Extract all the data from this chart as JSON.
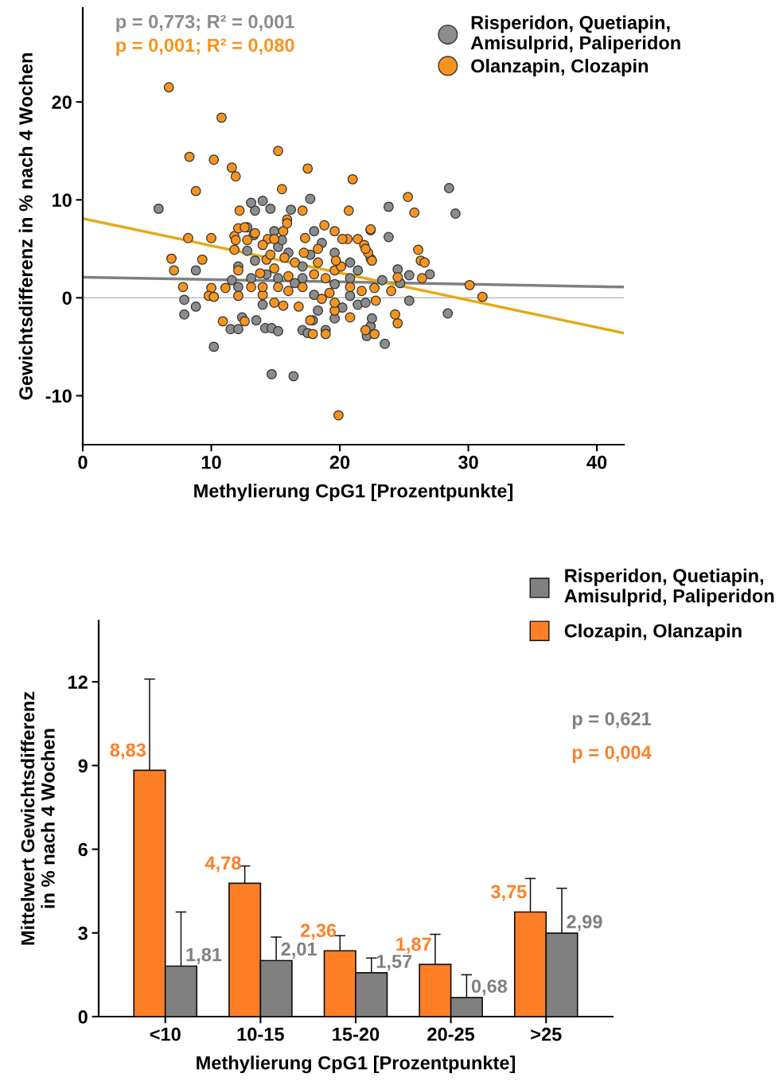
{
  "chart_data": [
    {
      "type": "scatter",
      "xlabel": "Methylierung CpG1 [Prozentpunkte]",
      "ylabel": "Gewichtsdifferenz in % nach 4 Wochen",
      "xlim": [
        0,
        42.1
      ],
      "ylim": [
        -15.0,
        29.6
      ],
      "xticks": [
        0,
        10,
        20,
        30,
        40
      ],
      "yticks": [
        -10,
        0,
        10,
        20
      ],
      "grid": false,
      "legend": "top right",
      "marker": "circle",
      "annotations": [
        "p = 0,773; R² = 0,001",
        "p = 0,001; R² = 0,080"
      ],
      "ref_lines": [
        {
          "axis": "y",
          "value": 0,
          "color": "#b0b0b0"
        }
      ],
      "series": [
        {
          "name": "Risperidon, Quetiapin, Amisulprid, Paliperidon",
          "color": "#8c8c8c",
          "x": [
            5.9,
            28.5,
            29.0,
            8.8,
            7.9,
            7.9,
            8.8,
            10.2,
            11.5,
            12.1,
            12.4,
            13.4,
            14.0,
            13.1,
            14.6,
            16.2,
            17.7,
            14.9,
            12.8,
            13.3,
            12.1,
            11.6,
            12.1,
            13.1,
            14.0,
            14.2,
            14.7,
            13.5,
            15.2,
            14.7,
            16.4,
            17.1,
            17.5,
            17.9,
            18.3,
            18.9,
            19.6,
            20.2,
            20.8,
            21.4,
            22.0,
            22.4,
            22.5,
            22.1,
            23.5,
            22.4,
            23.8,
            23.8,
            24.5,
            24.7,
            25.4,
            25.4,
            27.0,
            28.4,
            19.6,
            16.5,
            17.1,
            18.0,
            18.6,
            17.7,
            19.6,
            15.2,
            14.3,
            13.4,
            12.8,
            16.0,
            15.5,
            20.8,
            21.4,
            23.3,
            20.8,
            15.2,
            17.1,
            18.0
          ],
          "values": [
            9.1,
            11.2,
            8.6,
            2.8,
            -0.2,
            -1.7,
            -0.9,
            -5.0,
            -3.2,
            -3.2,
            -2.0,
            8.9,
            9.9,
            9.7,
            9.1,
            9.0,
            10.1,
            6.8,
            7.2,
            6.4,
            3.2,
            1.8,
            1.1,
            2.0,
            -0.7,
            -3.1,
            -3.1,
            -2.3,
            -3.4,
            -7.8,
            -8.0,
            -3.3,
            -3.6,
            -2.3,
            -1.3,
            -3.3,
            -2.1,
            -1.0,
            0.2,
            -0.7,
            -0.5,
            -2.9,
            -2.1,
            -3.9,
            -4.7,
            6.9,
            9.3,
            6.2,
            2.9,
            1.5,
            2.3,
            -0.3,
            2.4,
            -1.6,
            1.4,
            1.5,
            2.0,
            0.3,
            5.6,
            4.4,
            4.6,
            5.2,
            2.4,
            3.8,
            4.8,
            4.6,
            5.9,
            3.6,
            2.8,
            1.8,
            2.0,
            2.0,
            3.2,
            6.8
          ]
        },
        {
          "name": "Olanzapin, Clozapin",
          "color": "#f7941d",
          "x": [
            6.7,
            10.8,
            8.3,
            10.2,
            11.6,
            11.9,
            8.8,
            15.2,
            17.5,
            21.0,
            15.5,
            25.3,
            20.7,
            25.8,
            17.1,
            15.9,
            8.2,
            10.0,
            6.9,
            7.1,
            7.8,
            10.0,
            11.1,
            9.8,
            12.1,
            14.0,
            10.9,
            12.6,
            17.7,
            17.9,
            19.6,
            20.8,
            18.9,
            22.0,
            22.7,
            24.5,
            24.3,
            9.3,
            11.8,
            12.1,
            12.6,
            11.9,
            11.8,
            12.8,
            13.4,
            14.4,
            14.9,
            15.7,
            16.5,
            17.2,
            17.3,
            18.3,
            19.6,
            20.6,
            21.4,
            21.9,
            22.4,
            22.4,
            22.2,
            22.5,
            26.1,
            26.3,
            26.6,
            26.4,
            30.1,
            31.1,
            12.1,
            14.3,
            14.9,
            13.1,
            13.8,
            15.2,
            16.0,
            18.0,
            18.9,
            19.6,
            20.1,
            20.8,
            21.7,
            22.8,
            24.0,
            19.6,
            18.6,
            15.6,
            15.9,
            16.8,
            14.0,
            17.1,
            16.0,
            14.9,
            15.6,
            19.2,
            24.5,
            19.7,
            20.2,
            22.0,
            18.8,
            12.2,
            10.2,
            14.0,
            14.6,
            19.9,
            22.7,
            18.3
          ],
          "values": [
            21.5,
            18.4,
            14.4,
            14.1,
            13.3,
            12.4,
            10.9,
            15.0,
            13.2,
            12.1,
            11.1,
            10.3,
            8.9,
            8.7,
            8.9,
            8.0,
            6.1,
            6.1,
            4.0,
            2.8,
            1.1,
            1.0,
            1.0,
            0.2,
            0.2,
            0.3,
            -2.4,
            -2.4,
            -2.3,
            -3.7,
            -1.3,
            -2.0,
            -3.7,
            -3.3,
            -3.7,
            -2.6,
            -1.7,
            3.9,
            6.3,
            7.1,
            7.2,
            5.9,
            4.9,
            5.9,
            6.6,
            6.0,
            6.0,
            4.1,
            3.6,
            4.6,
            6.1,
            5.0,
            6.8,
            6.0,
            6.0,
            5.4,
            7.0,
            4.0,
            4.6,
            3.8,
            4.9,
            3.8,
            3.6,
            2.0,
            1.3,
            0.1,
            2.8,
            3.9,
            3.0,
            1.1,
            2.5,
            1.1,
            2.2,
            2.4,
            2.0,
            2.8,
            3.2,
            1.1,
            0.7,
            -0.3,
            0.7,
            -0.5,
            -0.1,
            6.8,
            7.6,
            -0.9,
            1.1,
            1.1,
            0.7,
            -0.5,
            -0.8,
            0.5,
            2.1,
            3.8,
            6.0,
            5.0,
            7.4,
            8.9,
            0.1,
            5.4,
            4.4,
            -12.0,
            1.0,
            3.6
          ]
        },
        {
          "type": "line",
          "marker": "none",
          "color": "#808080",
          "x": [
            0,
            42.1
          ],
          "values": [
            2.1,
            1.1
          ]
        },
        {
          "type": "line",
          "marker": "none",
          "color": "#e6a817",
          "x": [
            0,
            42.1
          ],
          "values": [
            8.1,
            -3.6
          ]
        }
      ]
    },
    {
      "type": "bar",
      "xlabel": "Methylierung CpG1 [Prozentpunkte]",
      "ylabel": "Mittelwert Gewichtsdifferenz\nin % nach 4 Wochen",
      "categories": [
        "<10",
        "10-15",
        "15-20",
        "20-25",
        ">25"
      ],
      "ylim": [
        0,
        14.2
      ],
      "yticks": [
        0,
        3,
        6,
        9,
        12
      ],
      "grid": false,
      "legend": "top right",
      "annotations": [
        "p = 0,621",
        "p = 0,004"
      ],
      "series": [
        {
          "name": "Clozapin, Olanzapin",
          "color": "#ff7f27",
          "values": [
            8.83,
            4.78,
            2.36,
            1.87,
            3.75
          ],
          "value_labels": [
            "8,83",
            "4,78",
            "2,36",
            "1,87",
            "3,75"
          ],
          "errors": [
            [
              8.83,
              12.1
            ],
            [
              4.78,
              5.4
            ],
            [
              2.36,
              2.9
            ],
            [
              1.87,
              2.95
            ],
            [
              3.75,
              4.95
            ]
          ]
        },
        {
          "name": "Risperidon, Quetiapin, Amisulprid, Paliperidon",
          "color": "#808080",
          "values": [
            1.81,
            2.01,
            1.57,
            0.68,
            2.99
          ],
          "value_labels": [
            "1,81",
            "2,01",
            "1,57",
            "0,68",
            "2,99"
          ],
          "errors": [
            [
              1.81,
              3.75
            ],
            [
              2.01,
              2.85
            ],
            [
              1.57,
              2.1
            ],
            [
              0.68,
              1.5
            ],
            [
              2.99,
              4.6
            ]
          ]
        }
      ]
    }
  ]
}
